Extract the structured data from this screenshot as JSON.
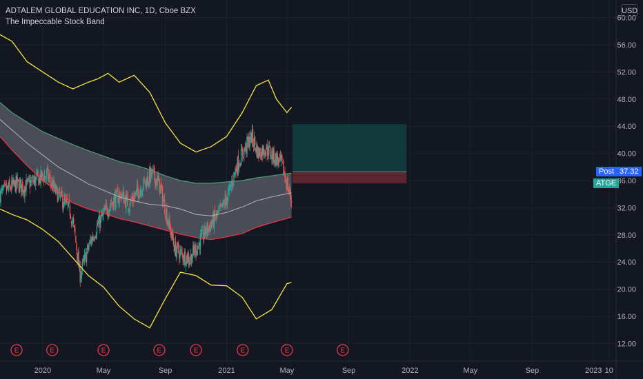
{
  "header": {
    "symbol_line": "ADTALEM GLOBAL EDUCATION INC, 1D, Cboe BZX",
    "indicator_name": "The Impeccable Stock Band",
    "currency": "USD"
  },
  "price_tags": {
    "post_label": "Post",
    "post_value": "37.32",
    "symbol_label": "ATGE"
  },
  "colors": {
    "background": "#131722",
    "outer_band": "#f5e83c",
    "upper_band": "#4f9a6e",
    "lower_band": "#f23645",
    "middle_line": "#b2b5be",
    "band_fill": "#5d606b",
    "candle_up": "#26a69a",
    "candle_down": "#ef5350",
    "profit_zone": "#123a3d",
    "loss_zone": "#5b2630",
    "post_tag": "#2962ff",
    "symbol_tag": "#26a69a"
  },
  "chart_data": {
    "type": "line",
    "y_axis": {
      "ticks": [
        12,
        16,
        20,
        24,
        28,
        32,
        36,
        40,
        44,
        48,
        52,
        56,
        60
      ],
      "tick_labels": [
        "12.00",
        "16.00",
        "20.00",
        "24.00",
        "28.00",
        "32.00",
        "36.00",
        "40.00",
        "44.00",
        "48.00",
        "52.00",
        "56.00",
        "60.00"
      ],
      "range": [
        9.4,
        62.6
      ]
    },
    "x_axis": {
      "range": [
        "2019-10-08",
        "2023-02-15"
      ],
      "ticks": [
        {
          "date": "2020-01-01",
          "label": "2020"
        },
        {
          "date": "2020-05-01",
          "label": "May"
        },
        {
          "date": "2020-09-01",
          "label": "Sep"
        },
        {
          "date": "2021-01-01",
          "label": "2021"
        },
        {
          "date": "2021-05-01",
          "label": "May"
        },
        {
          "date": "2021-09-01",
          "label": "Sep"
        },
        {
          "date": "2022-01-01",
          "label": "2022"
        },
        {
          "date": "2022-05-01",
          "label": "May"
        },
        {
          "date": "2022-09-01",
          "label": "Sep"
        },
        {
          "date": "2023-01-01",
          "label": "2023"
        },
        {
          "date": "2023-02-01",
          "label": "10"
        }
      ]
    },
    "earnings_markers": {
      "label": "E",
      "dates": [
        "2019-11-10",
        "2020-01-20",
        "2020-05-01",
        "2020-08-20",
        "2020-11-01",
        "2021-02-02",
        "2021-05-01",
        "2021-08-20"
      ]
    },
    "series": [
      {
        "key": "outer_upper",
        "x": [
          "2019-10-08",
          "2019-11-01",
          "2019-12-01",
          "2020-01-01",
          "2020-02-01",
          "2020-03-01",
          "2020-04-01",
          "2020-04-20",
          "2020-05-10",
          "2020-06-01",
          "2020-07-01",
          "2020-08-01",
          "2020-09-01",
          "2020-10-01",
          "2020-11-01",
          "2020-12-01",
          "2021-01-01",
          "2021-02-01",
          "2021-03-01",
          "2021-03-25",
          "2021-04-10",
          "2021-05-01",
          "2021-05-10"
        ],
        "y": [
          57.5,
          56.5,
          53.5,
          52.0,
          50.5,
          49.5,
          50.5,
          51.0,
          51.8,
          50.5,
          51.5,
          49.0,
          44.5,
          41.5,
          40.2,
          41.0,
          42.5,
          46.0,
          50.0,
          50.8,
          48.0,
          46.0,
          46.8
        ]
      },
      {
        "key": "upper_band",
        "x": [
          "2019-10-08",
          "2019-11-01",
          "2019-12-01",
          "2020-01-01",
          "2020-02-01",
          "2020-03-01",
          "2020-04-01",
          "2020-05-01",
          "2020-06-01",
          "2020-07-01",
          "2020-08-01",
          "2020-09-01",
          "2020-10-01",
          "2020-11-01",
          "2020-12-01",
          "2021-01-01",
          "2021-02-01",
          "2021-03-01",
          "2021-04-01",
          "2021-05-10"
        ],
        "y": [
          47.5,
          46.0,
          44.6,
          43.2,
          42.2,
          41.3,
          40.4,
          39.6,
          38.8,
          38.3,
          37.6,
          36.7,
          36.0,
          35.6,
          35.6,
          35.8,
          36.0,
          36.4,
          36.7,
          37.1
        ]
      },
      {
        "key": "middle",
        "x": [
          "2019-10-08",
          "2019-12-01",
          "2020-02-01",
          "2020-04-01",
          "2020-06-01",
          "2020-07-01",
          "2020-08-01",
          "2020-09-01",
          "2020-10-01",
          "2020-11-01",
          "2020-12-01",
          "2021-01-01",
          "2021-02-01",
          "2021-03-01",
          "2021-04-01",
          "2021-05-10"
        ],
        "y": [
          45.0,
          41.5,
          38.0,
          35.5,
          33.6,
          33.0,
          32.5,
          32.3,
          31.8,
          31.0,
          30.8,
          31.3,
          32.1,
          33.0,
          33.6,
          34.2
        ]
      },
      {
        "key": "lower_band",
        "x": [
          "2019-10-08",
          "2019-11-01",
          "2019-12-01",
          "2020-01-01",
          "2020-02-01",
          "2020-03-01",
          "2020-04-01",
          "2020-05-01",
          "2020-06-01",
          "2020-07-01",
          "2020-08-01",
          "2020-09-01",
          "2020-10-01",
          "2020-11-01",
          "2020-12-01",
          "2021-01-01",
          "2021-02-01",
          "2021-03-01",
          "2021-04-01",
          "2021-05-10"
        ],
        "y": [
          42.5,
          40.5,
          38.2,
          36.0,
          34.3,
          32.7,
          31.8,
          31.2,
          30.4,
          29.9,
          29.3,
          28.7,
          28.1,
          27.6,
          27.3,
          27.7,
          28.2,
          29.1,
          29.8,
          30.6
        ]
      },
      {
        "key": "outer_lower",
        "x": [
          "2019-10-08",
          "2019-11-01",
          "2019-12-01",
          "2020-01-01",
          "2020-02-01",
          "2020-03-01",
          "2020-04-01",
          "2020-05-01",
          "2020-06-01",
          "2020-07-01",
          "2020-08-01",
          "2020-09-01",
          "2020-10-01",
          "2020-11-01",
          "2020-12-01",
          "2021-01-01",
          "2021-02-01",
          "2021-03-01",
          "2021-04-01",
          "2021-05-01",
          "2021-05-10"
        ],
        "y": [
          31.8,
          31.0,
          30.2,
          28.8,
          27.0,
          24.6,
          22.0,
          20.3,
          17.5,
          15.6,
          14.3,
          18.6,
          22.5,
          22.0,
          20.6,
          20.5,
          18.8,
          15.6,
          17.0,
          20.8,
          21.0
        ]
      },
      {
        "key": "close",
        "x": [
          "2019-10-08",
          "2019-10-25",
          "2019-11-10",
          "2019-11-25",
          "2019-12-10",
          "2019-12-25",
          "2020-01-10",
          "2020-01-25",
          "2020-02-10",
          "2020-02-25",
          "2020-03-05",
          "2020-03-15",
          "2020-03-25",
          "2020-04-05",
          "2020-04-20",
          "2020-05-05",
          "2020-05-20",
          "2020-06-05",
          "2020-06-20",
          "2020-07-05",
          "2020-07-20",
          "2020-08-05",
          "2020-08-20",
          "2020-09-05",
          "2020-09-20",
          "2020-10-05",
          "2020-10-20",
          "2020-11-05",
          "2020-11-20",
          "2020-12-05",
          "2020-12-20",
          "2021-01-05",
          "2021-01-20",
          "2021-02-05",
          "2021-02-20",
          "2021-03-05",
          "2021-03-20",
          "2021-04-05",
          "2021-04-20",
          "2021-05-01",
          "2021-05-10"
        ],
        "y": [
          34.0,
          34.8,
          35.5,
          35.0,
          35.8,
          36.3,
          36.8,
          34.5,
          33.0,
          31.5,
          28.0,
          22.0,
          24.5,
          27.0,
          29.5,
          31.5,
          33.0,
          34.0,
          32.5,
          34.0,
          35.5,
          37.0,
          35.5,
          30.5,
          26.0,
          25.0,
          24.5,
          26.5,
          28.5,
          30.0,
          31.5,
          34.0,
          38.0,
          40.5,
          42.5,
          40.0,
          40.8,
          39.5,
          38.5,
          35.5,
          33.0
        ]
      }
    ],
    "trade_zone": {
      "x_start": "2021-05-12",
      "x_end": "2021-12-25",
      "entry": 37.3,
      "target": 44.3,
      "stop": 35.6
    },
    "last_price": 37.32
  }
}
